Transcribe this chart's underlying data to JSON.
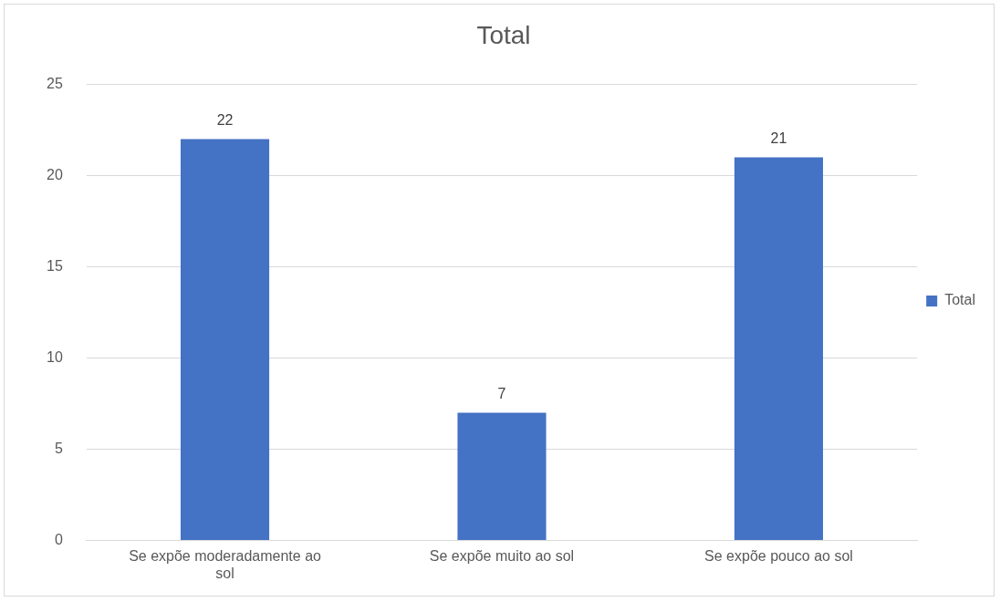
{
  "chart_data": {
    "type": "bar",
    "title": "Total",
    "categories": [
      "Se expõe moderadamente ao sol",
      "Se expõe muito ao sol",
      "Se expõe pouco ao sol"
    ],
    "series": [
      {
        "name": "Total",
        "color": "#4472c4",
        "values": [
          22,
          7,
          21
        ]
      }
    ],
    "ylim": [
      0,
      25
    ],
    "yticks": [
      0,
      5,
      10,
      15,
      20,
      25
    ],
    "grid": "y",
    "legend": "right",
    "data_labels": true
  }
}
